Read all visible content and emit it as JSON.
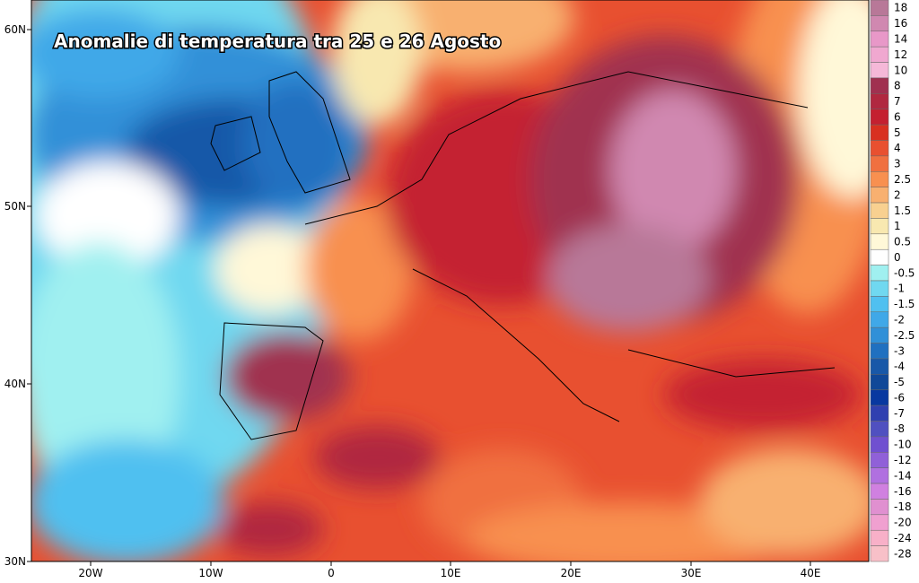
{
  "title": "Anomalie di temperatura tra 25 e 26 Agosto",
  "latitude_labels": [
    "60N",
    "50N",
    "40N",
    "30N"
  ],
  "longitude_labels": [
    "20W",
    "10W",
    "0",
    "10E",
    "20E",
    "30E",
    "40E"
  ],
  "legend": {
    "items": [
      {
        "label": "18",
        "color": "#b87898"
      },
      {
        "label": "16",
        "color": "#d088b0"
      },
      {
        "label": "14",
        "color": "#e898c8"
      },
      {
        "label": "12",
        "color": "#f0a8d0"
      },
      {
        "label": "10",
        "color": "#f5b8d8"
      },
      {
        "label": "8",
        "color": "#a03050"
      },
      {
        "label": "7",
        "color": "#b02840"
      },
      {
        "label": "6",
        "color": "#c42030"
      },
      {
        "label": "5",
        "color": "#d83020"
      },
      {
        "label": "4",
        "color": "#e85030"
      },
      {
        "label": "3",
        "color": "#f07040"
      },
      {
        "label": "2.5",
        "color": "#f89050"
      },
      {
        "label": "2",
        "color": "#f8b070"
      },
      {
        "label": "1.5",
        "color": "#f8d090"
      },
      {
        "label": "1",
        "color": "#f8e8b0"
      },
      {
        "label": "0.5",
        "color": "#fff8d8"
      },
      {
        "label": "0",
        "color": "#ffffff"
      },
      {
        "label": "-0.5",
        "color": "#a0f0f0"
      },
      {
        "label": "-1",
        "color": "#70d8f0"
      },
      {
        "label": "-1.5",
        "color": "#50c0f0"
      },
      {
        "label": "-2",
        "color": "#40a8e8"
      },
      {
        "label": "-2.5",
        "color": "#3090d8"
      },
      {
        "label": "-3",
        "color": "#2070c0"
      },
      {
        "label": "-4",
        "color": "#1858a8"
      },
      {
        "label": "-5",
        "color": "#104898"
      },
      {
        "label": "-6",
        "color": "#0838a0"
      },
      {
        "label": "-7",
        "color": "#3040b0"
      },
      {
        "label": "-8",
        "color": "#5050c0"
      },
      {
        "label": "-10",
        "color": "#7050d0"
      },
      {
        "label": "-12",
        "color": "#9060d8"
      },
      {
        "label": "-14",
        "color": "#b070e0"
      },
      {
        "label": "-16",
        "color": "#d080e0"
      },
      {
        "label": "-18",
        "color": "#e090d0"
      },
      {
        "label": "-20",
        "color": "#f0a0d0"
      },
      {
        "label": "-24",
        "color": "#f8b0c8"
      },
      {
        "label": "-28",
        "color": "#f8c0c8"
      }
    ]
  }
}
